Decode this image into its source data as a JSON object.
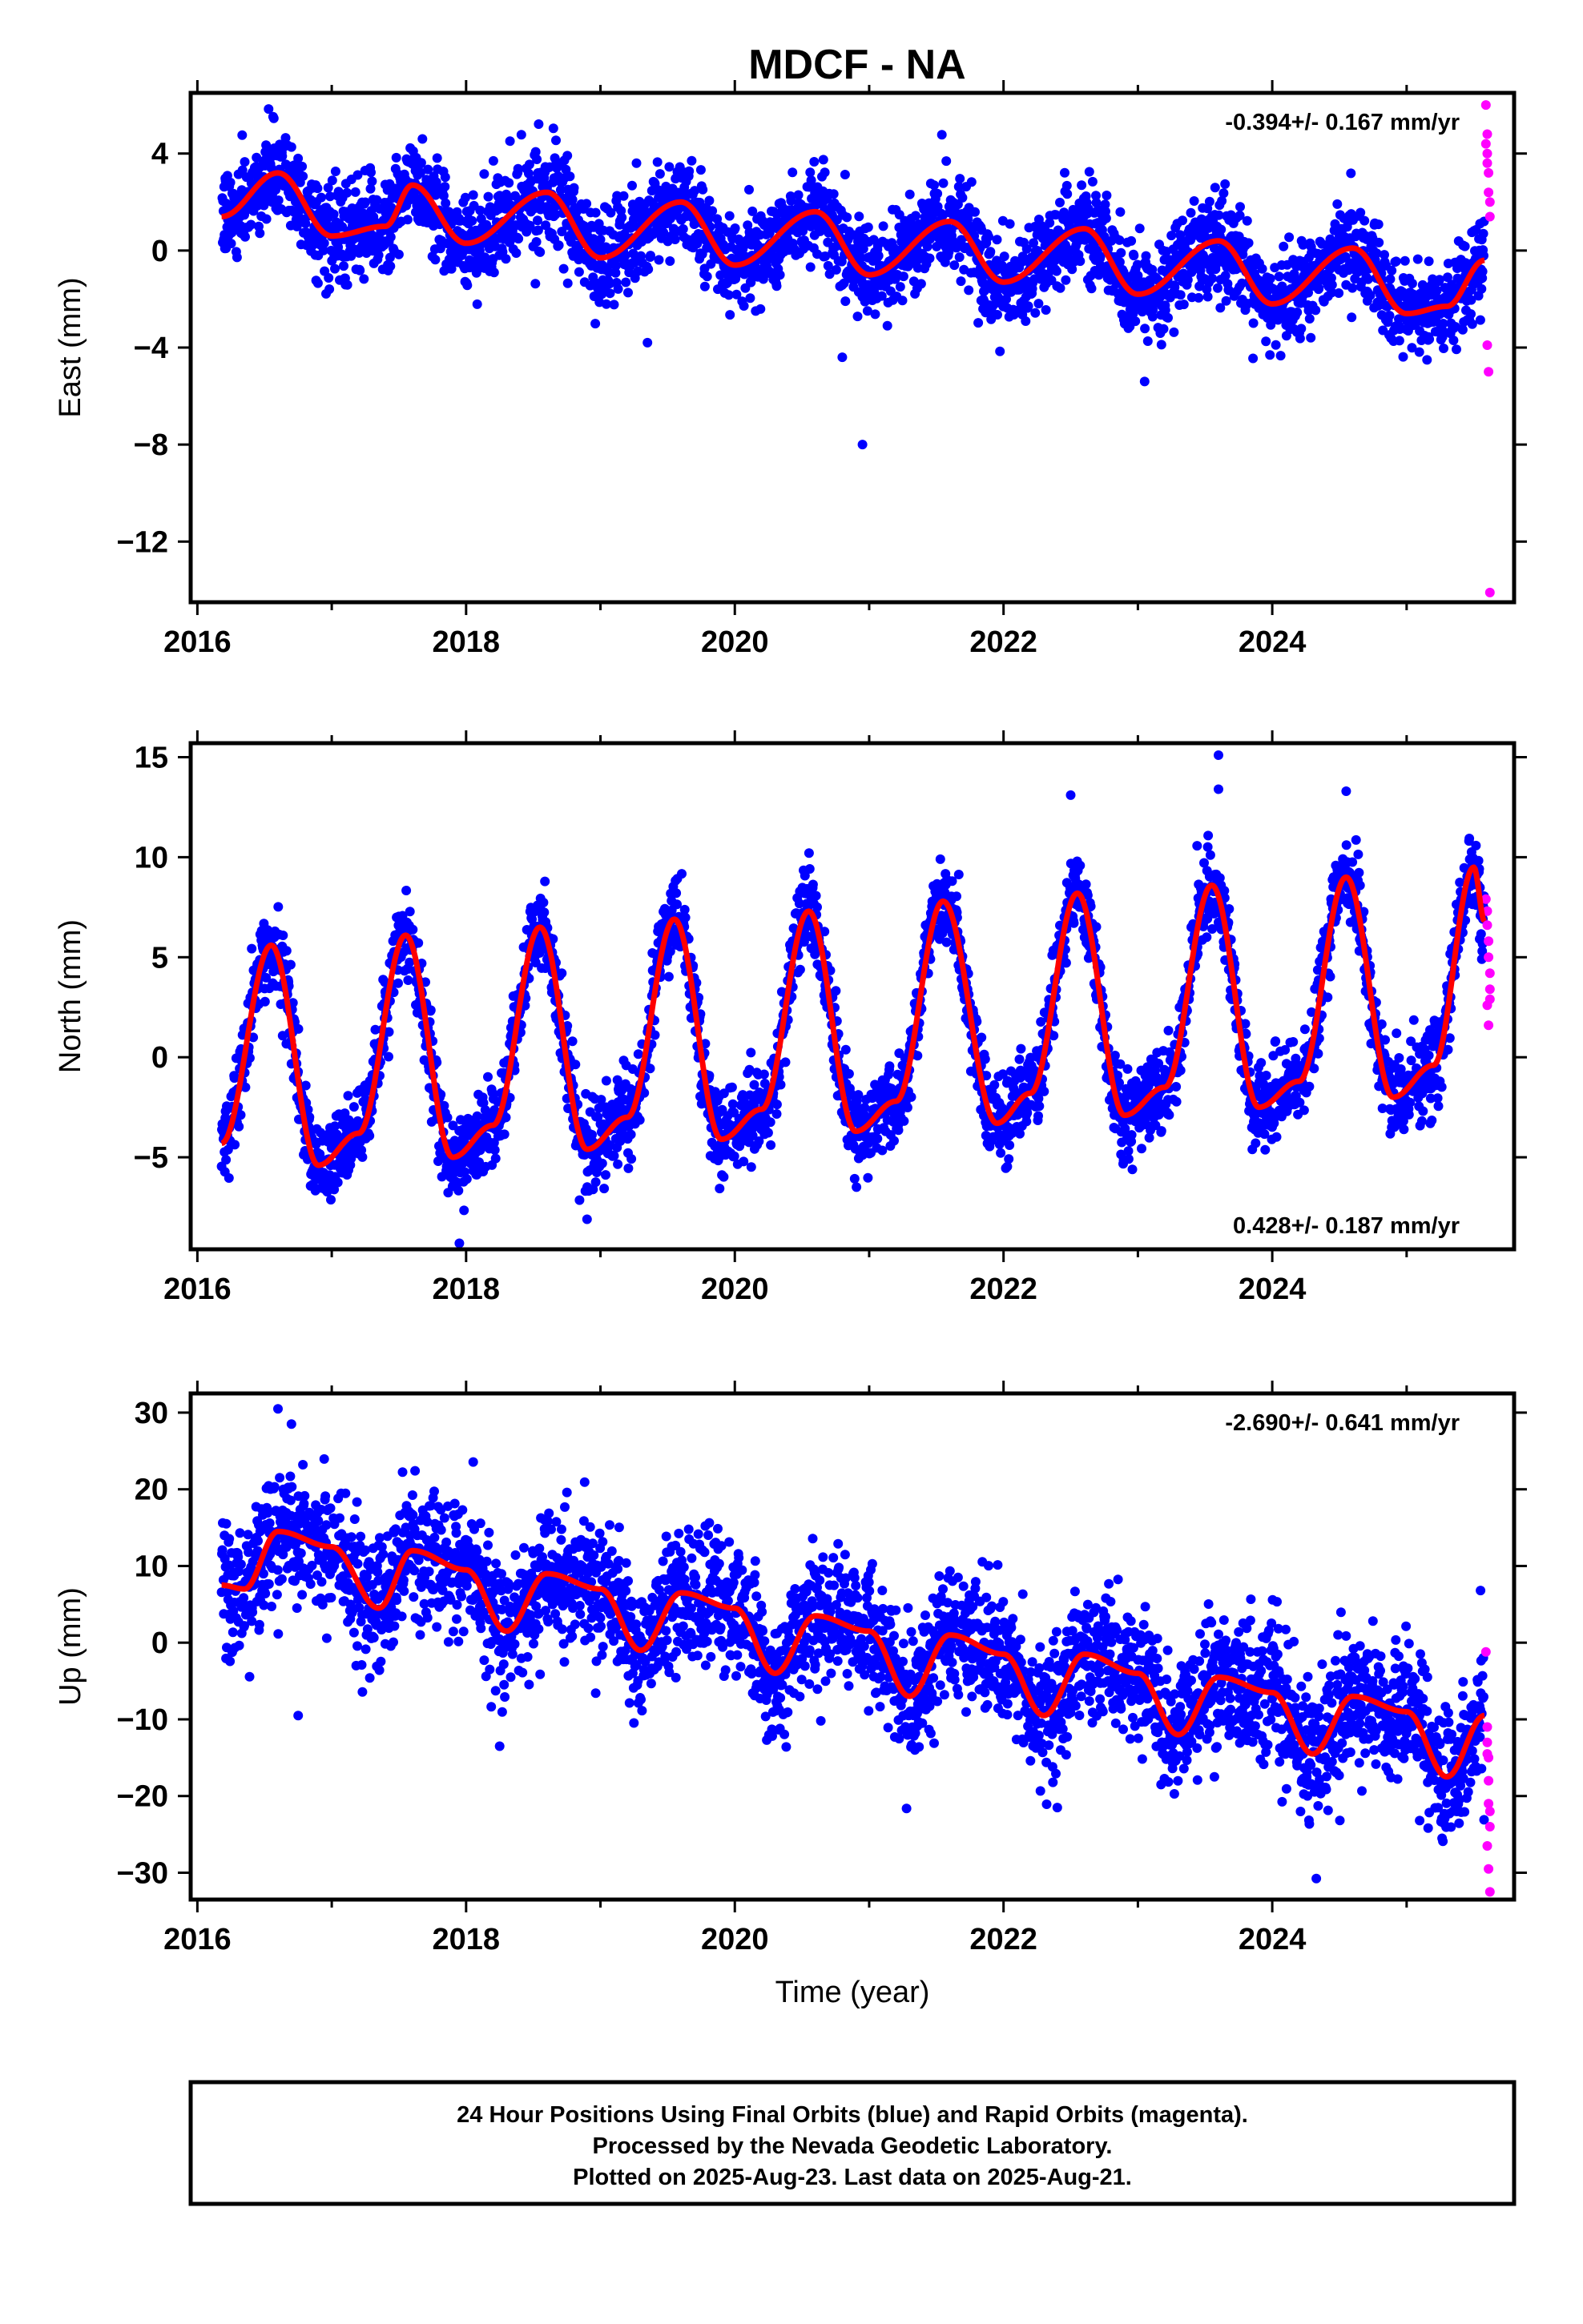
{
  "title": "MDCF - NA",
  "colors": {
    "final": "#0000ff",
    "rapid": "#ff00ff",
    "model": "#ff0000",
    "frame": "#000000"
  },
  "footer": {
    "lines": [
      "24 Hour Positions Using Final Orbits (blue) and Rapid Orbits (magenta).",
      "Processed by the Nevada Geodetic Laboratory.",
      "Plotted on 2025-Aug-23. Last data on 2025-Aug-21."
    ]
  },
  "chart_data": [
    {
      "type": "scatter",
      "ylabel": "East (mm)",
      "xlabel": "",
      "rate_text": "-0.394+/- 0.167 mm/yr",
      "rate_position": "top-right",
      "xlim": [
        2015.95,
        2025.8
      ],
      "ylim": [
        -14.5,
        6.5
      ],
      "xticks": [
        "2016",
        "2018",
        "2020",
        "2022",
        "2024"
      ],
      "yticks": [
        "4",
        "0",
        "−4",
        "−8",
        "−12"
      ],
      "start": 2016.18,
      "end": 2025.58,
      "series": [
        {
          "label": "model",
          "anchor_x": [
            2016.18,
            2016.6,
            2017.0,
            2017.4,
            2017.6,
            2018.0,
            2018.6,
            2019.0,
            2019.6,
            2020.0,
            2020.6,
            2021.0,
            2021.6,
            2022.0,
            2022.6,
            2023.0,
            2023.6,
            2024.0,
            2024.6,
            2025.0,
            2025.3,
            2025.58
          ],
          "anchor_y": [
            1.4,
            3.2,
            0.6,
            1.0,
            2.7,
            0.3,
            2.4,
            -0.3,
            2.0,
            -0.6,
            1.6,
            -1.0,
            1.2,
            -1.3,
            0.9,
            -1.8,
            0.4,
            -2.2,
            0.1,
            -2.6,
            -2.3,
            -0.4
          ],
          "amplitude": 1.3,
          "noise_sd": 0.95
        },
        {
          "label": "rapid",
          "x": [
            2025.59,
            2025.59,
            2025.6,
            2025.6,
            2025.61,
            2025.61,
            2025.62,
            2025.62,
            2025.6,
            2025.61,
            2025.62,
            2025.6
          ],
          "y": [
            6.0,
            4.4,
            4.0,
            3.6,
            3.2,
            2.4,
            2.0,
            1.4,
            -3.9,
            -5.0,
            -14.1,
            4.8
          ]
        }
      ],
      "outliers": {
        "x": [
          2020.95,
          2020.8,
          2019.35,
          2023.05
        ],
        "y": [
          -8.0,
          -4.4,
          -3.8,
          -5.4
        ]
      }
    },
    {
      "type": "scatter",
      "ylabel": "North (mm)",
      "xlabel": "",
      "rate_text": "0.428+/- 0.187 mm/yr",
      "rate_position": "bottom-right",
      "xlim": [
        2015.95,
        2025.8
      ],
      "ylim": [
        -9.6,
        15.7
      ],
      "xticks": [
        "2016",
        "2018",
        "2020",
        "2022",
        "2024"
      ],
      "yticks": [
        "15",
        "10",
        "5",
        "0",
        "−5"
      ],
      "start": 2016.18,
      "end": 2025.58,
      "series": [
        {
          "label": "model",
          "anchor_x": [
            2016.18,
            2016.55,
            2016.9,
            2017.2,
            2017.55,
            2017.9,
            2018.2,
            2018.55,
            2018.9,
            2019.2,
            2019.55,
            2019.9,
            2020.2,
            2020.55,
            2020.9,
            2021.2,
            2021.55,
            2021.95,
            2022.2,
            2022.55,
            2022.9,
            2023.2,
            2023.55,
            2023.9,
            2024.2,
            2024.55,
            2024.9,
            2025.2,
            2025.5,
            2025.58
          ],
          "anchor_y": [
            -4.3,
            5.6,
            -5.4,
            -3.8,
            6.1,
            -5.0,
            -3.4,
            6.5,
            -4.6,
            -3.0,
            6.9,
            -4.1,
            -2.6,
            7.3,
            -3.7,
            -2.2,
            7.8,
            -3.3,
            -1.8,
            8.2,
            -2.9,
            -1.5,
            8.6,
            -2.5,
            -1.2,
            9.0,
            -2.0,
            -0.4,
            9.5,
            6.8
          ],
          "amplitude": 0,
          "noise_sd": 1.05
        },
        {
          "label": "rapid",
          "x": [
            2025.59,
            2025.6,
            2025.6,
            2025.61,
            2025.61,
            2025.62,
            2025.62,
            2025.6,
            2025.61,
            2025.62
          ],
          "y": [
            7.9,
            7.3,
            6.6,
            5.8,
            5.0,
            4.2,
            3.4,
            2.6,
            1.6,
            2.9
          ]
        }
      ],
      "outliers": {
        "x": [
          2023.6,
          2023.6,
          2022.5,
          2024.55,
          2017.95,
          2018.9
        ],
        "y": [
          15.1,
          13.4,
          13.1,
          13.3,
          -9.3,
          -8.1
        ]
      }
    },
    {
      "type": "scatter",
      "ylabel": "Up (mm)",
      "xlabel": "Time (year)",
      "rate_text": "-2.690+/- 0.641 mm/yr",
      "rate_position": "top-right",
      "xlim": [
        2015.95,
        2025.8
      ],
      "ylim": [
        -33.5,
        32.5
      ],
      "xticks": [
        "2016",
        "2018",
        "2020",
        "2022",
        "2024"
      ],
      "yticks": [
        "30",
        "20",
        "10",
        "0",
        "−10",
        "−20",
        "−30"
      ],
      "start": 2016.18,
      "end": 2025.58,
      "series": [
        {
          "label": "model",
          "anchor_x": [
            2016.18,
            2016.35,
            2016.6,
            2017.0,
            2017.35,
            2017.6,
            2018.0,
            2018.3,
            2018.6,
            2019.0,
            2019.3,
            2019.6,
            2020.0,
            2020.3,
            2020.6,
            2021.0,
            2021.3,
            2021.6,
            2022.0,
            2022.3,
            2022.6,
            2023.0,
            2023.3,
            2023.6,
            2024.0,
            2024.3,
            2024.6,
            2025.0,
            2025.3,
            2025.58
          ],
          "anchor_y": [
            7.5,
            7.0,
            14.5,
            12.5,
            4.5,
            12.0,
            9.5,
            1.5,
            9.0,
            7.0,
            -1.0,
            6.5,
            4.5,
            -4.0,
            3.5,
            1.5,
            -7.0,
            1.0,
            -1.5,
            -9.5,
            -1.5,
            -4.0,
            -12.0,
            -4.5,
            -6.5,
            -14.5,
            -7.0,
            -9.0,
            -17.5,
            -9.5
          ],
          "amplitude": 0,
          "noise_sd": 4.3
        },
        {
          "label": "rapid",
          "x": [
            2025.59,
            2025.6,
            2025.6,
            2025.61,
            2025.61,
            2025.62,
            2025.62,
            2025.6,
            2025.61,
            2025.62,
            2025.6,
            2025.61
          ],
          "y": [
            -1.2,
            -13.0,
            -14.5,
            -15.0,
            -21.0,
            -22.0,
            -24.0,
            -26.5,
            -29.5,
            -32.5,
            -11.0,
            -18.0
          ]
        }
      ],
      "outliers": {
        "x": [
          2016.6,
          2016.7,
          2016.75,
          2018.25,
          2022.4,
          2025.55
        ],
        "y": [
          30.5,
          28.5,
          -9.5,
          -13.5,
          -21.5,
          6.8
        ]
      }
    }
  ]
}
